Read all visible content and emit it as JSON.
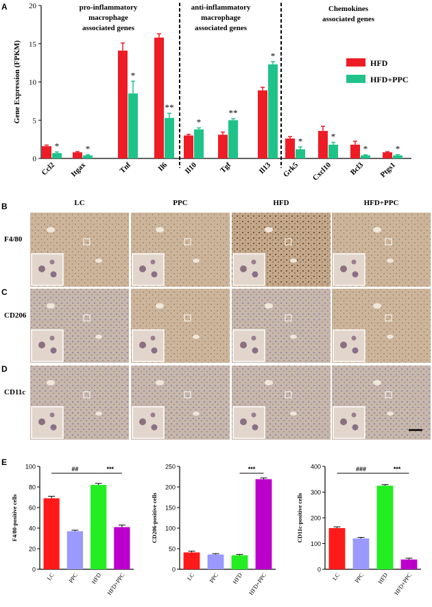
{
  "panels": {
    "A": "A",
    "B": "B",
    "C": "C",
    "D": "D",
    "E": "E"
  },
  "groups_A": [
    {
      "text": "pro-inflammatory\nmacrophage\nassociated genes"
    },
    {
      "text": "anti-inflammatory\nmacrophage\nassociated genes"
    },
    {
      "text": "Chemokines\nassociated genes"
    }
  ],
  "micro": {
    "columns": [
      "LC",
      "PPC",
      "HFD",
      "HFD+PPC"
    ],
    "rows": [
      "F4/80",
      "CD206",
      "CD11c"
    ]
  },
  "colors": {
    "hfd": "#ee1c25",
    "hfd_ppc": "#1fc38a",
    "lc": "#ff1a1a",
    "ppc": "#9999ff",
    "hfd_e": "#22ee22",
    "hfd_ppc_e": "#bb00cc",
    "tissue": "#c9b39a"
  },
  "chart_data": [
    {
      "type": "bar",
      "panel": "A",
      "ylabel": "Gene Expression (FPKM)",
      "ylim": [
        0,
        20
      ],
      "yticks": [
        "0",
        "5",
        "10",
        "15",
        "20"
      ],
      "categories": [
        "Ccl2",
        "Itgax",
        "Tnf",
        "Il6",
        "Il10",
        "Tgf",
        "Il13",
        "Grk5",
        "Cxcl10",
        "Bcl3",
        "Ptgs1"
      ],
      "series": [
        {
          "name": "HFD",
          "values": [
            1.6,
            0.8,
            14.1,
            15.8,
            3.0,
            3.1,
            8.9,
            2.6,
            3.6,
            1.8,
            0.8
          ],
          "errors": [
            0.15,
            0.1,
            1.0,
            0.5,
            0.15,
            0.35,
            0.4,
            0.25,
            0.6,
            0.45,
            0.08
          ]
        },
        {
          "name": "HFD+PPC",
          "values": [
            0.7,
            0.4,
            8.5,
            5.3,
            3.8,
            5.0,
            12.3,
            1.2,
            1.8,
            0.4,
            0.4
          ],
          "errors": [
            0.15,
            0.08,
            1.6,
            0.6,
            0.2,
            0.2,
            0.35,
            0.3,
            0.3,
            0.08,
            0.1
          ]
        }
      ],
      "annotations": [
        "*",
        "*",
        "*",
        "**",
        "*",
        "**",
        "*",
        "*",
        "*",
        "*",
        "*"
      ],
      "legend": "right"
    },
    {
      "type": "bar",
      "panel": "E1",
      "ylabel": "F4/80-positive cells",
      "ylim": [
        0,
        100
      ],
      "yticks": [
        "0",
        "20",
        "40",
        "60",
        "80",
        "100"
      ],
      "categories": [
        "LC",
        "PPC",
        "HFD",
        "HFD+PPC"
      ],
      "values": [
        69,
        37,
        82,
        41
      ],
      "errors": [
        2,
        1,
        1.5,
        2
      ],
      "brackets": [
        {
          "from": 0,
          "to": 2,
          "label": "##"
        },
        {
          "from": 2,
          "to": 3,
          "label": "***"
        }
      ]
    },
    {
      "type": "bar",
      "panel": "E2",
      "ylabel": "CD206-positive cells",
      "ylim": [
        0,
        250
      ],
      "yticks": [
        "0",
        "50",
        "100",
        "150",
        "200",
        "250"
      ],
      "categories": [
        "LC",
        "PPC",
        "HFD",
        "HFD+PPC"
      ],
      "values": [
        41,
        36,
        34,
        219
      ],
      "errors": [
        3,
        2,
        2,
        3
      ],
      "brackets": [
        {
          "from": 2,
          "to": 3,
          "label": "***"
        }
      ]
    },
    {
      "type": "bar",
      "panel": "E3",
      "ylabel": "CD11c-positive cells",
      "ylim": [
        0,
        400
      ],
      "yticks": [
        "0",
        "100",
        "200",
        "300",
        "400"
      ],
      "categories": [
        "LC",
        "PPC",
        "HFD",
        "HFD+PPC"
      ],
      "values": [
        160,
        120,
        325,
        38
      ],
      "errors": [
        5,
        4,
        4,
        5
      ],
      "brackets": [
        {
          "from": 0,
          "to": 2,
          "label": "###"
        },
        {
          "from": 2,
          "to": 3,
          "label": "***"
        }
      ]
    }
  ]
}
